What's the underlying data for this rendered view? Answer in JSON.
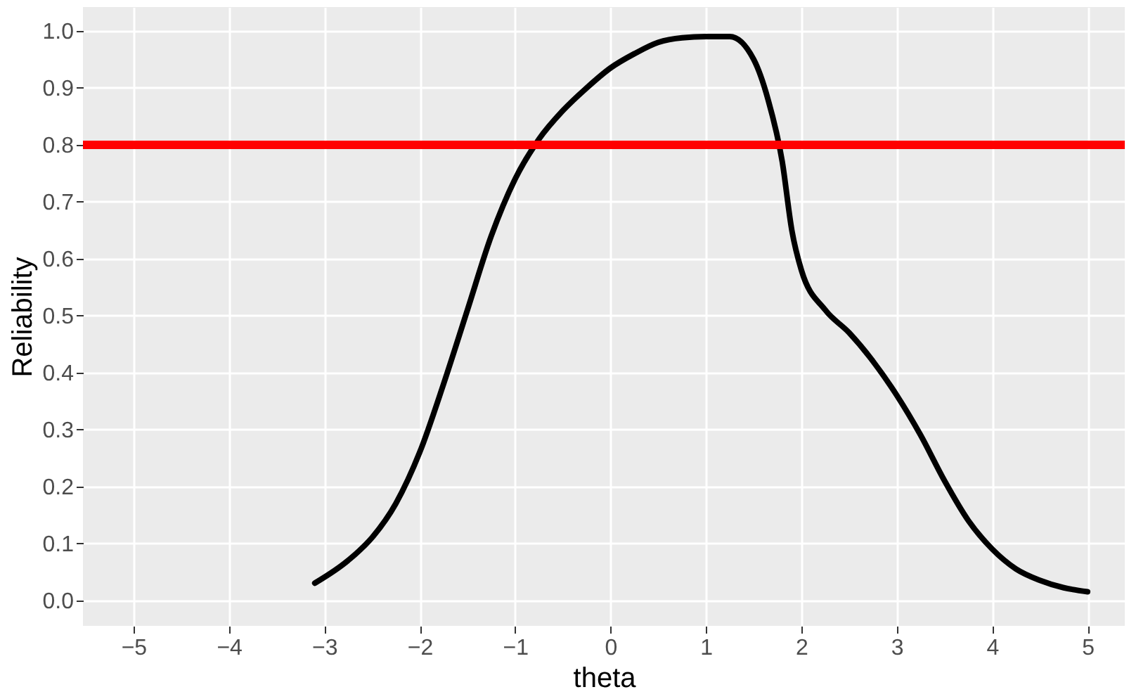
{
  "chart_data": {
    "type": "line",
    "xlabel": "theta",
    "ylabel": "Reliability",
    "x": [
      -3.1,
      -2.75,
      -2.5,
      -2.25,
      -2,
      -1.75,
      -1.5,
      -1.25,
      -1,
      -0.75,
      -0.5,
      -0.25,
      0,
      0.25,
      0.5,
      0.75,
      1,
      1.25,
      1.5,
      1.65,
      1.8,
      1.9,
      2,
      2.25,
      2.5,
      2.75,
      3,
      3.25,
      3.5,
      3.75,
      4,
      4.25,
      4.5,
      4.75,
      5
    ],
    "series": [
      {
        "color": "#000000",
        "values": [
          0.03,
          0.07,
          0.11,
          0.17,
          0.26,
          0.38,
          0.51,
          0.64,
          0.74,
          0.81,
          0.86,
          0.9,
          0.935,
          0.96,
          0.98,
          0.988,
          0.99,
          0.99,
          0.95,
          0.88,
          0.77,
          0.65,
          0.58,
          0.51,
          0.47,
          0.42,
          0.36,
          0.29,
          0.21,
          0.14,
          0.09,
          0.055,
          0.035,
          0.022,
          0.015
        ]
      }
    ],
    "xlim": [
      -5.53,
      5.39
    ],
    "ylim": [
      -0.045,
      1.042
    ],
    "xticks": [
      {
        "value": -5,
        "label": "−5"
      },
      {
        "value": -4,
        "label": "−4"
      },
      {
        "value": -3,
        "label": "−3"
      },
      {
        "value": -2,
        "label": "−2"
      },
      {
        "value": -1,
        "label": "−1"
      },
      0,
      1,
      2,
      3,
      4,
      5
    ],
    "yticks": [
      {
        "value": 0,
        "label": "0.0"
      },
      {
        "value": 0.1,
        "label": "0.1"
      },
      {
        "value": 0.2,
        "label": "0.2"
      },
      {
        "value": 0.3,
        "label": "0.3"
      },
      {
        "value": 0.4,
        "label": "0.4"
      },
      {
        "value": 0.5,
        "label": "0.5"
      },
      {
        "value": 0.6,
        "label": "0.6"
      },
      {
        "value": 0.7,
        "label": "0.7"
      },
      {
        "value": 0.8,
        "label": "0.8"
      },
      {
        "value": 0.9,
        "label": "0.9"
      },
      {
        "value": 1,
        "label": "1.0"
      }
    ],
    "ref_lines": [
      {
        "axis": "y",
        "value": 0.8,
        "color": "#ff0000"
      }
    ],
    "grid": true,
    "line_style": "solid"
  }
}
